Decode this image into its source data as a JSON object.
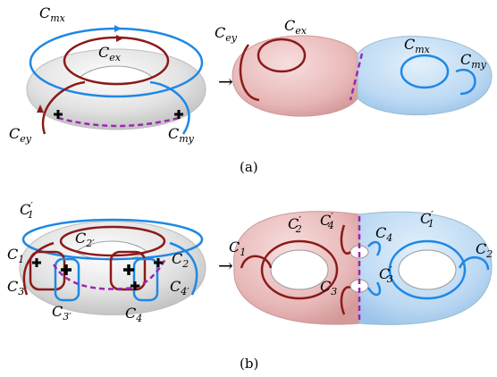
{
  "colors": {
    "red_curve": "#8b1a1a",
    "blue_curve": "#1e88e5",
    "cut_line": "#9c27b0",
    "torus_grey": "#d9d9d9",
    "pink_surface": "#e8b4b4",
    "blue_surface": "#b7d7f2"
  },
  "panel_a": {
    "caption": "(a)",
    "arrow": "→",
    "left": {
      "labels": [
        {
          "id": "mx",
          "base": "C",
          "sub": "mx"
        },
        {
          "id": "ex",
          "base": "C",
          "sub": "ex"
        },
        {
          "id": "ey",
          "base": "C",
          "sub": "ey"
        },
        {
          "id": "my",
          "base": "C",
          "sub": "my"
        }
      ]
    },
    "right": {
      "labels": [
        {
          "id": "ey",
          "base": "C",
          "sub": "ey"
        },
        {
          "id": "ex",
          "base": "C",
          "sub": "ex"
        },
        {
          "id": "mx",
          "base": "C",
          "sub": "mx"
        },
        {
          "id": "my",
          "base": "C",
          "sub": "my"
        }
      ]
    }
  },
  "panel_b": {
    "caption": "(b)",
    "arrow": "→",
    "left": {
      "labels": [
        {
          "id": "c1p",
          "base": "C",
          "sub": "1",
          "prime": "′"
        },
        {
          "id": "c2p",
          "base": "C",
          "sub": "2′",
          "prime": ""
        },
        {
          "id": "c1",
          "base": "C",
          "sub": "1",
          "prime": ""
        },
        {
          "id": "c2",
          "base": "C",
          "sub": "2",
          "prime": ""
        },
        {
          "id": "c3",
          "base": "C",
          "sub": "3",
          "prime": ""
        },
        {
          "id": "c4p",
          "base": "C",
          "sub": "4′",
          "prime": ""
        },
        {
          "id": "c3p",
          "base": "C",
          "sub": "3′",
          "prime": ""
        },
        {
          "id": "c4",
          "base": "C",
          "sub": "4",
          "prime": ""
        }
      ]
    },
    "right": {
      "labels": [
        {
          "id": "c2p",
          "base": "C",
          "sub": "2",
          "prime": "′"
        },
        {
          "id": "c4p",
          "base": "C",
          "sub": "4",
          "prime": "′"
        },
        {
          "id": "c4",
          "base": "C",
          "sub": "4",
          "prime": ""
        },
        {
          "id": "c1p",
          "base": "C",
          "sub": "1",
          "prime": "′"
        },
        {
          "id": "c1",
          "base": "C",
          "sub": "1",
          "prime": ""
        },
        {
          "id": "c2",
          "base": "C",
          "sub": "2",
          "prime": ""
        },
        {
          "id": "c3",
          "base": "C",
          "sub": "3",
          "prime": ""
        },
        {
          "id": "c3p",
          "base": "C",
          "sub": "3",
          "prime": "′"
        }
      ]
    }
  }
}
